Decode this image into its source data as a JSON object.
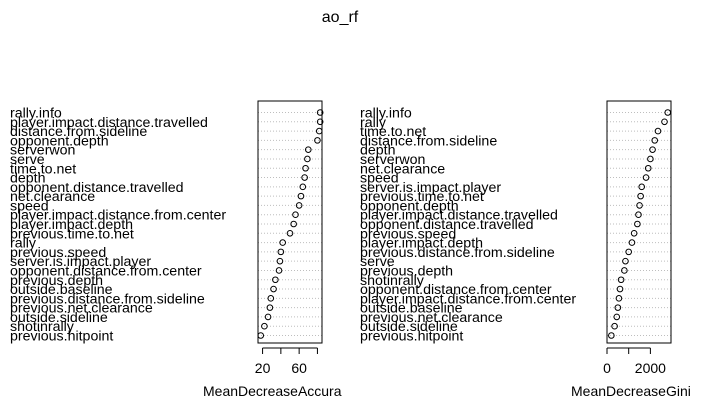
{
  "title": "ao_rf",
  "chart_data": [
    {
      "type": "scatter",
      "subtype": "dotchart",
      "xlabel": "MeanDecreaseAccuracy",
      "xlim": [
        15,
        85
      ],
      "xticks": [
        20,
        40,
        60,
        80
      ],
      "xtick_labels": [
        "20",
        "",
        "60",
        ""
      ],
      "grid": "dotted horizontal",
      "categories": [
        "rally.info",
        "player.impact.distance.travelled",
        "distance.from.sideline",
        "opponent.depth",
        "serverwon",
        "serve",
        "time.to.net",
        "depth",
        "opponent.distance.travelled",
        "net.clearance",
        "speed",
        "player.impact.distance.from.center",
        "player.impact.depth",
        "previous.time.to.net",
        "rally",
        "previous.speed",
        "server.is.impact.player",
        "opponent.distance.from.center",
        "previous.depth",
        "outside.baseline",
        "previous.distance.from.sideline",
        "previous.net.clearance",
        "outside.sideline",
        "shotinrally",
        "previous.hitpoint"
      ],
      "values": [
        83,
        83,
        82,
        80,
        70,
        69,
        67,
        66,
        64,
        62,
        60,
        56,
        54,
        50,
        42,
        40,
        39,
        38,
        34,
        32,
        29,
        28,
        26,
        22,
        18
      ]
    },
    {
      "type": "scatter",
      "subtype": "dotchart",
      "xlabel": "MeanDecreaseGini",
      "xlim": [
        0,
        2950
      ],
      "xticks": [
        0,
        1000,
        2000
      ],
      "xtick_labels": [
        "0",
        "",
        "2000"
      ],
      "grid": "dotted horizontal",
      "categories": [
        "rally.info",
        "rally",
        "time.to.net",
        "distance.from.sideline",
        "depth",
        "serverwon",
        "net.clearance",
        "speed",
        "server.is.impact.player",
        "previous.time.to.net",
        "opponent.depth",
        "player.impact.distance.travelled",
        "opponent.distance.travelled",
        "previous.speed",
        "player.impact.depth",
        "previous.distance.from.sideline",
        "serve",
        "previous.depth",
        "shotinrally",
        "opponent.distance.from.center",
        "player.impact.distance.from.center",
        "outside.baseline",
        "previous.net.clearance",
        "outside.sideline",
        "previous.hitpoint"
      ],
      "values": [
        2800,
        2650,
        2350,
        2200,
        2100,
        2000,
        1900,
        1800,
        1600,
        1550,
        1500,
        1450,
        1400,
        1250,
        1150,
        1000,
        850,
        800,
        650,
        600,
        550,
        500,
        450,
        350,
        200
      ]
    }
  ]
}
